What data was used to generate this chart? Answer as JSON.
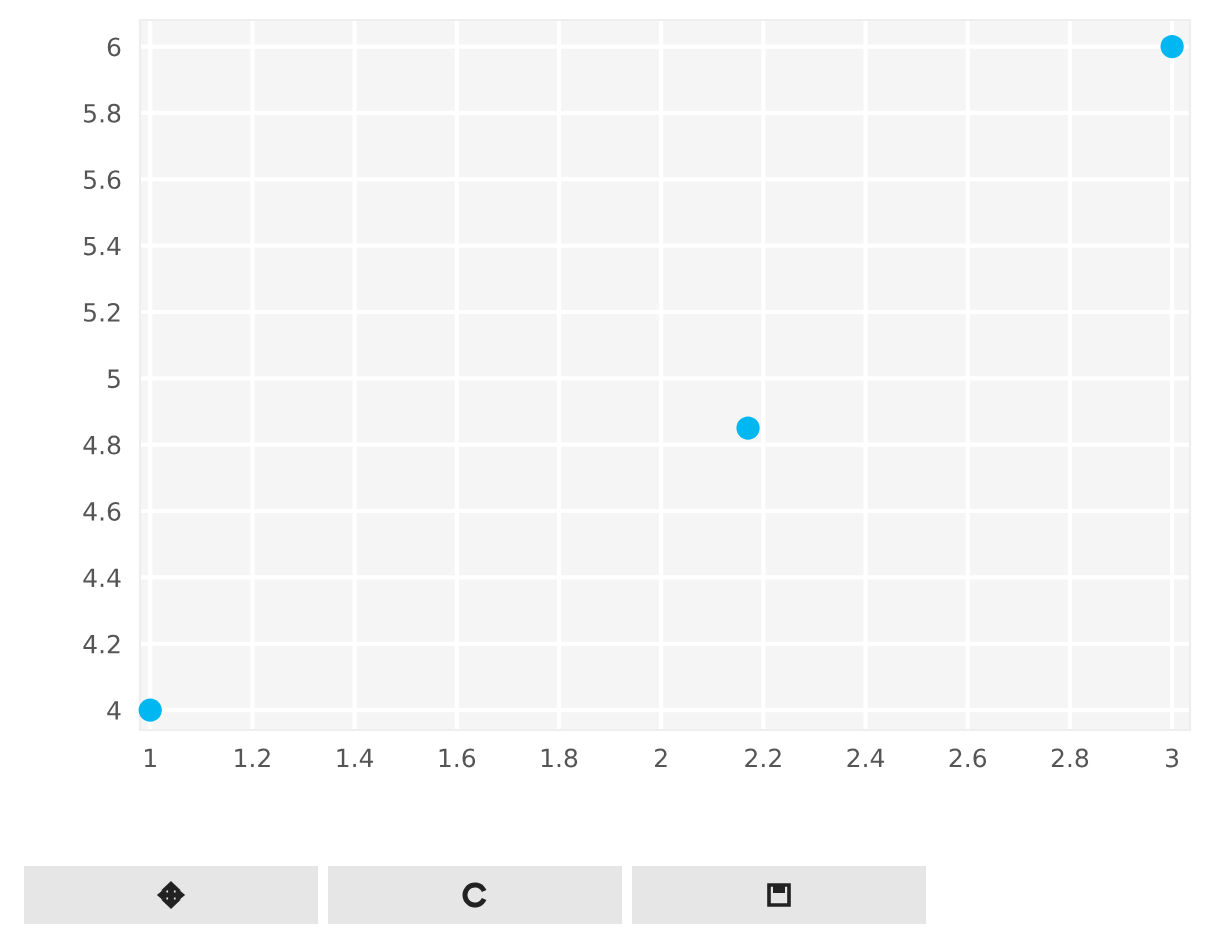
{
  "chart_data": {
    "type": "scatter",
    "x": [
      1,
      2.17,
      3
    ],
    "series": [
      {
        "color": "#00b7f1",
        "values": [
          4,
          4.85,
          6
        ]
      }
    ],
    "xlim": [
      0.98,
      3.035
    ],
    "ylim": [
      3.94,
      6.08
    ],
    "xticks": [
      1,
      1.2,
      1.4,
      1.6,
      1.8,
      2,
      2.2,
      2.4,
      2.6,
      2.8,
      3
    ],
    "yticks": [
      4,
      4.2,
      4.4,
      4.6,
      4.8,
      5,
      5.2,
      5.4,
      5.6,
      5.8,
      6
    ],
    "grid": true,
    "marker": "circle"
  }
}
